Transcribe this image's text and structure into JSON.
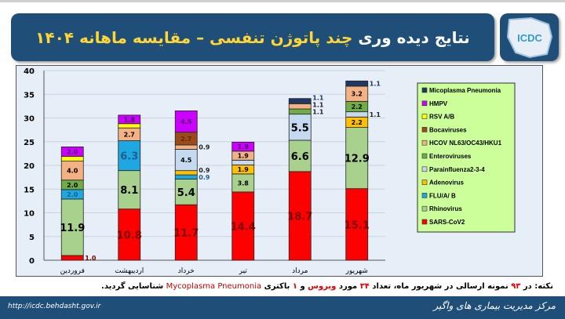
{
  "header": {
    "title_white_1": "نتایج دیده وری",
    "title_yellow": "چند پاتوژن تنفسی – مقایسه ماهانه ۱۴۰۴",
    "logo_text": "ICDC"
  },
  "note": {
    "p1": "نکته: در ",
    "n93": "۹۳",
    "p2": " نمونه ارسالی در شهریور ماه، تعداد ",
    "n34": "۳۴",
    "p3": " مورد ",
    "virus": "ویروس",
    "p4": " و ",
    "n1": "۱",
    "p5": " باکتری ",
    "myco": "Mycoplasma Pneumonia",
    "p6": " شناسایی گردید."
  },
  "footer": {
    "url": "http://icdc.behdasht.gov.ir",
    "org": "مرکز مدیریت بیماری های واگیر"
  },
  "chart_data": {
    "type": "bar",
    "stacked": true,
    "ylim": [
      0,
      40
    ],
    "yticks": [
      0,
      5,
      10,
      15,
      20,
      25,
      30,
      35,
      40
    ],
    "grid": true,
    "legend": "right",
    "categories": [
      "فروردین",
      "اردیبهشت",
      "خرداد",
      "تیر",
      "مرداد",
      "شهریور"
    ],
    "series": [
      {
        "name": "SARS-CoV2",
        "color": "#ff0000",
        "label_color": "#7a0000",
        "values": [
          1.0,
          10.8,
          11.7,
          14.4,
          18.7,
          15.1
        ],
        "labels": [
          "1.0",
          "10.8",
          "11.7",
          "14.4",
          "18.7",
          "15.1"
        ]
      },
      {
        "name": "Rhinovirus",
        "color": "#a9d18e",
        "label_color": "#000000",
        "values": [
          11.9,
          8.1,
          5.4,
          3.8,
          6.6,
          12.9
        ],
        "labels": [
          "11.9",
          "8.1",
          "5.4",
          "3.8",
          "6.6",
          "12.9"
        ]
      },
      {
        "name": "FLU/A/ B",
        "color": "#1ea7e1",
        "label_color": "#1f5f8b",
        "values": [
          2.0,
          6.3,
          0.9,
          0,
          0,
          0
        ],
        "labels": [
          "2.0",
          "6.3",
          "0.9",
          "",
          "",
          ""
        ]
      },
      {
        "name": "Adenovirus",
        "color": "#ffc000",
        "label_color": "#000000",
        "values": [
          0,
          0,
          0.9,
          1.9,
          0,
          2.2
        ],
        "labels": [
          "",
          "",
          "0.9",
          "1.9",
          "",
          "2.2"
        ]
      },
      {
        "name": "Parainfluenza2-3-4",
        "color": "#c5d9f1",
        "label_color": "#000000",
        "values": [
          0,
          0,
          4.5,
          1.0,
          5.5,
          1.1
        ],
        "labels": [
          "",
          "",
          "4.5",
          "",
          "5.5",
          "1.1"
        ]
      },
      {
        "name": "Enteroviruses",
        "color": "#70ad47",
        "label_color": "#000000",
        "values": [
          2.0,
          0,
          0,
          0,
          1.1,
          2.2
        ],
        "labels": [
          "2.0",
          "",
          "",
          "",
          "1.1",
          "2.2"
        ]
      },
      {
        "name": "HCOV NL63/OC43/HKU1",
        "color": "#f4b183",
        "label_color": "#000000",
        "values": [
          4.0,
          2.7,
          0.9,
          1.9,
          1.1,
          3.2
        ],
        "labels": [
          "4.0",
          "2.7",
          "0.9",
          "1.9",
          "1.1",
          "3.2"
        ]
      },
      {
        "name": "Bocaviruses",
        "color": "#9c4a1a",
        "label_color": "#5a2a0a",
        "values": [
          0,
          0,
          2.7,
          0,
          0,
          0
        ],
        "labels": [
          "",
          "",
          "2.7",
          "",
          "",
          ""
        ]
      },
      {
        "name": "RSV A/B",
        "color": "#ffff00",
        "label_color": "#000000",
        "values": [
          1.0,
          0.9,
          0,
          0,
          0,
          0
        ],
        "labels": [
          "",
          "",
          "",
          "",
          "",
          ""
        ]
      },
      {
        "name": "HMPV",
        "color": "#cc00ff",
        "label_color": "#4b0060",
        "values": [
          2.0,
          1.8,
          4.5,
          1.9,
          0,
          0
        ],
        "labels": [
          "2.0",
          "1.8",
          "4.5",
          "1.9",
          "",
          ""
        ]
      },
      {
        "name": "Micoplasma Pneumonia",
        "color": "#1f3864",
        "label_color": "#ffffff",
        "values": [
          0,
          0,
          0,
          0,
          1.1,
          1.1
        ],
        "labels": [
          "",
          "",
          "",
          "",
          "1.1",
          "1.1"
        ]
      }
    ]
  }
}
